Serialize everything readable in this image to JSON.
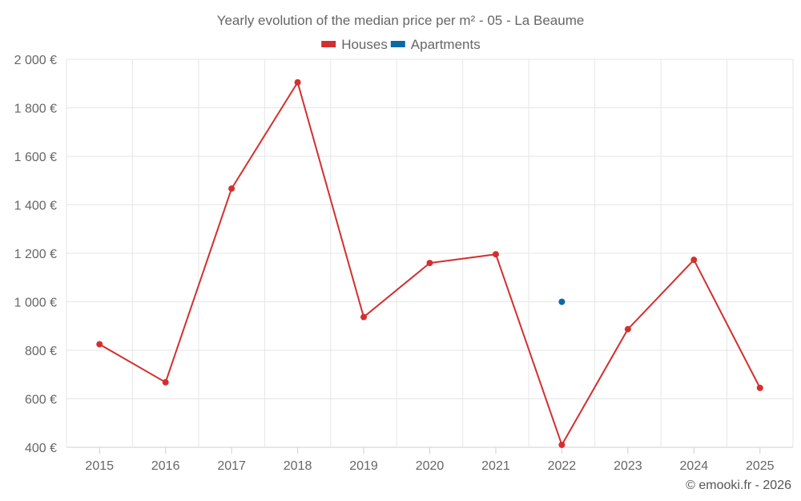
{
  "chart_data": {
    "type": "line",
    "title": "Yearly evolution of the median price per m² - 05 - La Beaume",
    "categories": [
      "2015",
      "2016",
      "2017",
      "2018",
      "2019",
      "2020",
      "2021",
      "2022",
      "2023",
      "2024",
      "2025"
    ],
    "series": [
      {
        "name": "Houses",
        "color": "#d32f2f",
        "values": [
          825,
          668,
          1467,
          1905,
          937,
          1160,
          1196,
          410,
          887,
          1173,
          645
        ]
      },
      {
        "name": "Apartments",
        "color": "#0b6aa3",
        "values": [
          null,
          null,
          null,
          null,
          null,
          null,
          null,
          1000,
          null,
          null,
          null
        ]
      }
    ],
    "ylim": [
      400,
      2000
    ],
    "yticks": [
      400,
      600,
      800,
      1000,
      1200,
      1400,
      1600,
      1800,
      2000
    ],
    "ytick_labels": [
      "400 €",
      "600 €",
      "800 €",
      "1 000 €",
      "1 200 €",
      "1 400 €",
      "1 600 €",
      "1 800 €",
      "2 000 €"
    ],
    "xlabel": "",
    "ylabel": "",
    "grid": true,
    "legend_position": "top-center"
  },
  "credit": "© emooki.fr - 2026"
}
